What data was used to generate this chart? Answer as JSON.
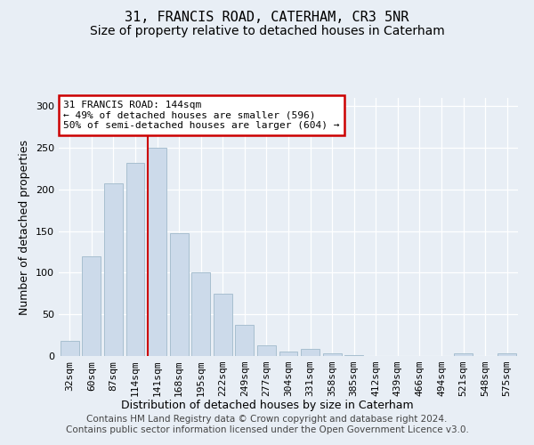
{
  "title": "31, FRANCIS ROAD, CATERHAM, CR3 5NR",
  "subtitle": "Size of property relative to detached houses in Caterham",
  "xlabel": "Distribution of detached houses by size in Caterham",
  "ylabel": "Number of detached properties",
  "bar_labels": [
    "32sqm",
    "60sqm",
    "87sqm",
    "114sqm",
    "141sqm",
    "168sqm",
    "195sqm",
    "222sqm",
    "249sqm",
    "277sqm",
    "304sqm",
    "331sqm",
    "358sqm",
    "385sqm",
    "412sqm",
    "439sqm",
    "466sqm",
    "494sqm",
    "521sqm",
    "548sqm",
    "575sqm"
  ],
  "bar_values": [
    18,
    120,
    207,
    232,
    250,
    147,
    101,
    75,
    37,
    13,
    5,
    9,
    3,
    1,
    0,
    0,
    0,
    0,
    3,
    0,
    3
  ],
  "bar_color": "#ccdaea",
  "bar_edge_color": "#a8bfd0",
  "highlight_index": 4,
  "highlight_line_color": "#cc0000",
  "ylim": [
    0,
    310
  ],
  "yticks": [
    0,
    50,
    100,
    150,
    200,
    250,
    300
  ],
  "annotation_text": "31 FRANCIS ROAD: 144sqm\n← 49% of detached houses are smaller (596)\n50% of semi-detached houses are larger (604) →",
  "annotation_box_color": "#ffffff",
  "annotation_box_edge_color": "#cc0000",
  "footer_line1": "Contains HM Land Registry data © Crown copyright and database right 2024.",
  "footer_line2": "Contains public sector information licensed under the Open Government Licence v3.0.",
  "background_color": "#e8eef5",
  "grid_color": "#ffffff",
  "title_fontsize": 11,
  "subtitle_fontsize": 10,
  "axis_label_fontsize": 9,
  "tick_fontsize": 8,
  "footer_fontsize": 7.5
}
